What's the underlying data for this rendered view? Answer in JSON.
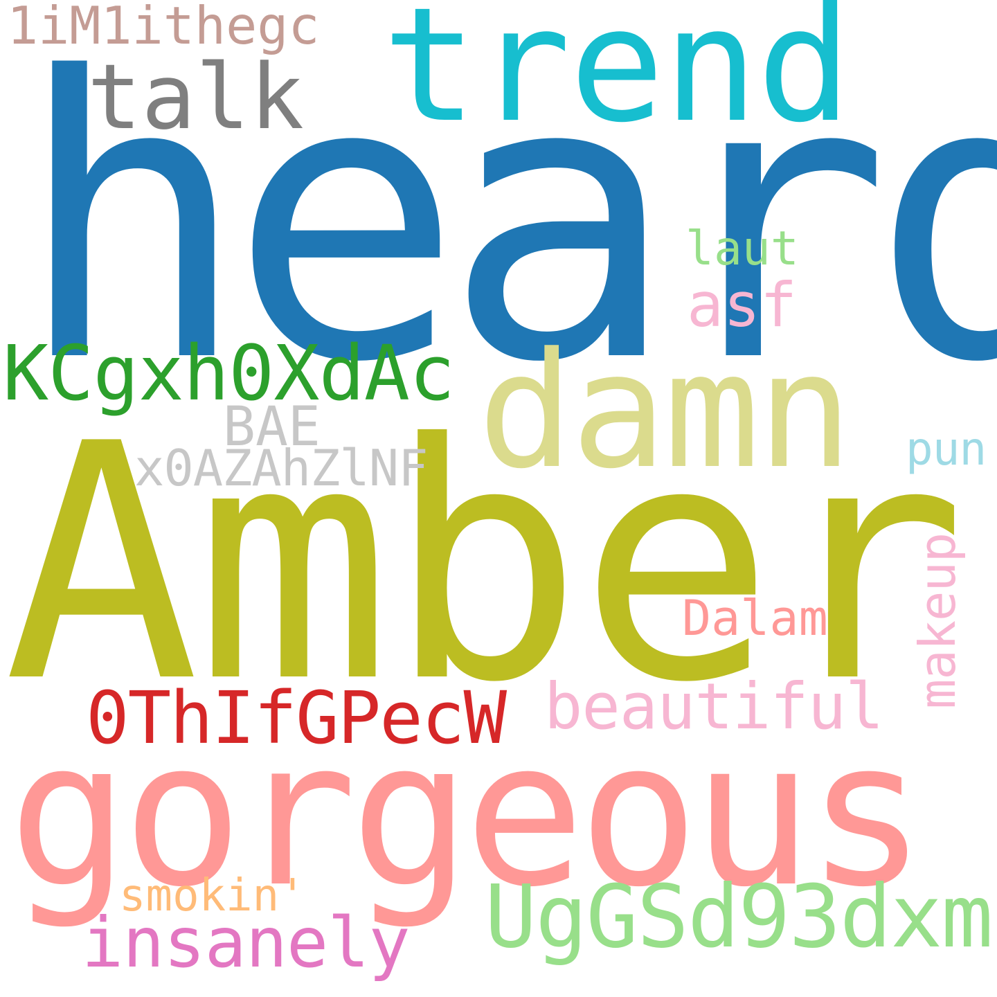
{
  "background": "#ffffff",
  "words": [
    {
      "text": "heard",
      "color": "#1f77b4",
      "orientation": "horizontal"
    },
    {
      "text": "Amber",
      "color": "#bcbd22",
      "orientation": "horizontal"
    },
    {
      "text": "gorgeous",
      "color": "#ff9896",
      "orientation": "horizontal"
    },
    {
      "text": "trend",
      "color": "#17becf",
      "orientation": "horizontal"
    },
    {
      "text": "damn",
      "color": "#dbdb8d",
      "orientation": "horizontal"
    },
    {
      "text": "talk",
      "color": "#7f7f7f",
      "orientation": "horizontal"
    },
    {
      "text": "KCgxh0XdAc",
      "color": "#2ca02c",
      "orientation": "horizontal"
    },
    {
      "text": "UgGSd93dxm",
      "color": "#98df8a",
      "orientation": "horizontal"
    },
    {
      "text": "insanely",
      "color": "#e377c2",
      "orientation": "horizontal"
    },
    {
      "text": "beautiful",
      "color": "#f7b6d2",
      "orientation": "horizontal"
    },
    {
      "text": "0ThIfGPecW",
      "color": "#d62728",
      "orientation": "horizontal"
    },
    {
      "text": "asf",
      "color": "#f7b6d2",
      "orientation": "horizontal"
    },
    {
      "text": "laut",
      "color": "#98df8a",
      "orientation": "horizontal"
    },
    {
      "text": "BAE",
      "color": "#c7c7c7",
      "orientation": "horizontal"
    },
    {
      "text": "x0AZAhZlNF",
      "color": "#c7c7c7",
      "orientation": "horizontal"
    },
    {
      "text": "pun",
      "color": "#9edae5",
      "orientation": "horizontal"
    },
    {
      "text": "Dalam",
      "color": "#ff9896",
      "orientation": "horizontal"
    },
    {
      "text": "makeup",
      "color": "#f7b6d2",
      "orientation": "vertical"
    },
    {
      "text": "smokin'",
      "color": "#ffbb78",
      "orientation": "horizontal"
    },
    {
      "text": "1iM1ithegc",
      "color": "#c49c94",
      "orientation": "horizontal"
    }
  ]
}
